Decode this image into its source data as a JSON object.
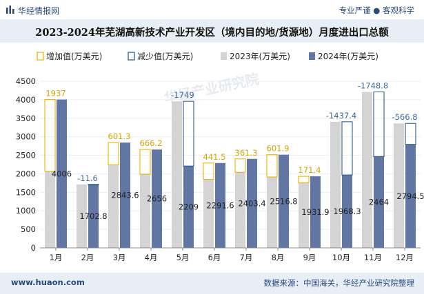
{
  "header": {
    "brand": "华经情报网",
    "tagline": "专业严谨 ● 客观科学"
  },
  "title": "2023-2024年芜湖高新技术产业开发区（境内目的地/货源地）月度进出口总额",
  "legend": {
    "increase": "增加值(万美元)",
    "decrease": "减少值(万美元)",
    "y2023": "2023年(万美元)",
    "y2024": "2024年(万美元)"
  },
  "watermark": "华经产业研究院",
  "footer": {
    "site": "www.huaon.com",
    "source": "数据来源：中国海关，华经产业研究院整理"
  },
  "colors": {
    "bar2023": "#d4d4d4",
    "bar2024": "#6176a2",
    "increase": "#f0b400",
    "decrease": "#2e5d8f",
    "increaseLabel": "#d4a400",
    "decreaseLabel": "#3e6a9a"
  },
  "chart_data": {
    "type": "bar",
    "categories": [
      "1月",
      "2月",
      "3月",
      "4月",
      "5月",
      "6月",
      "7月",
      "8月",
      "9月",
      "10月",
      "11月",
      "12月"
    ],
    "series": [
      {
        "name": "2023年(万美元)",
        "values": [
          2069,
          1714.4,
          2242.3,
          1989.8,
          3958,
          1850.1,
          2042.1,
          1914.9,
          1760.5,
          3405.7,
          4212.8,
          3361.3
        ]
      },
      {
        "name": "2024年(万美元)",
        "values": [
          4006,
          1702.8,
          2843.6,
          2656,
          2209,
          2291.6,
          2403.4,
          2516.8,
          1931.9,
          1968.3,
          2464,
          2794.5
        ]
      }
    ],
    "change_labels": [
      "1937",
      "-11.6",
      "601.3",
      "666.2",
      "-1749",
      "441.5",
      "361.3",
      "601.9",
      "171.4",
      "-1437.4",
      "-1748.8",
      "-566.8"
    ],
    "ylim": [
      0,
      4500
    ],
    "yticks": [
      0,
      500,
      1000,
      1500,
      2000,
      2500,
      3000,
      3500,
      4000,
      4500
    ],
    "xlabel": "",
    "ylabel": ""
  }
}
